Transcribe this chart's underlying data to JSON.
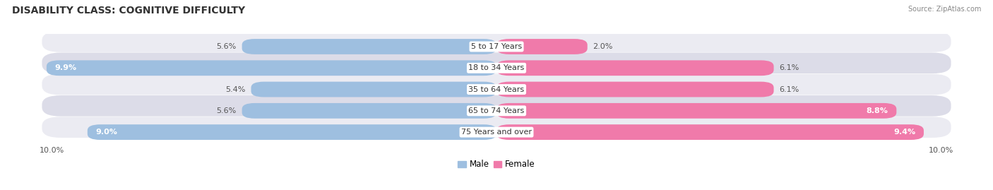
{
  "title": "DISABILITY CLASS: COGNITIVE DIFFICULTY",
  "source": "Source: ZipAtlas.com",
  "categories": [
    "5 to 17 Years",
    "18 to 34 Years",
    "35 to 64 Years",
    "65 to 74 Years",
    "75 Years and over"
  ],
  "male_values": [
    5.6,
    9.9,
    5.4,
    5.6,
    9.0
  ],
  "female_values": [
    2.0,
    6.1,
    6.1,
    8.8,
    9.4
  ],
  "male_color": "#9ebfe0",
  "female_color": "#f07aaa",
  "row_bg_light": "#ebebf2",
  "row_bg_dark": "#dcdce8",
  "max_value": 10.0,
  "legend_male": "Male",
  "legend_female": "Female",
  "title_fontsize": 10,
  "label_fontsize": 8,
  "category_fontsize": 8
}
